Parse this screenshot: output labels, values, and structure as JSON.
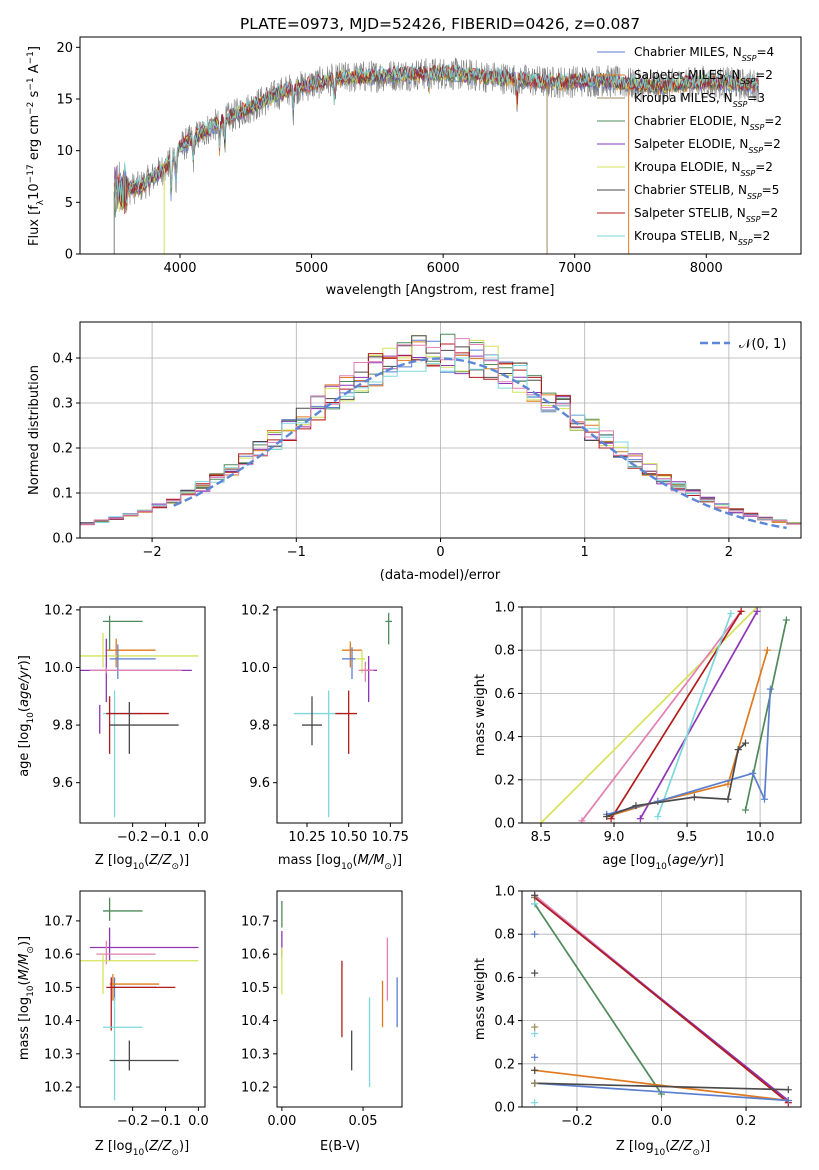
{
  "figure": {
    "title": "PLATE=0973, MJD=52426, FIBERID=0426, z=0.087"
  },
  "colors": {
    "Chabrier MILES": "#5b7fd0",
    "Salpeter MILES": "#e07a1f",
    "Kroupa MILES": "#9a8a5a",
    "Chabrier ELODIE": "#4f8a5b",
    "Salpeter ELODIE": "#8e35b5",
    "Kroupa ELODIE": "#d4e35a",
    "Chabrier STELIB": "#4a4a4a",
    "Salpeter STELIB": "#b31b1b",
    "Kroupa STELIB": "#7dd8de",
    "pink": "#e27fb3",
    "normal": "#5b87d6"
  },
  "chart_data": [
    {
      "id": "spectrum",
      "type": "line",
      "title": "PLATE=0973, MJD=52426, FIBERID=0426, z=0.087",
      "xlabel": "wavelength [Angstrom, rest frame]",
      "ylabel": "Flux [f_λ10^-17 erg cm^-2 s^-1 A^-1]",
      "xlim": [
        3240,
        8720
      ],
      "ylim": [
        0,
        21
      ],
      "xticks": [
        4000,
        5000,
        6000,
        7000,
        8000
      ],
      "yticks": [
        0,
        5,
        10,
        15,
        20
      ],
      "legend_placement": "right",
      "legend": [
        {
          "model": "Chabrier MILES",
          "nssp": "4"
        },
        {
          "model": "Salpeter MILES",
          "nssp": "2"
        },
        {
          "model": "Kroupa MILES",
          "nssp": "3"
        },
        {
          "model": "Chabrier ELODIE",
          "nssp": "2"
        },
        {
          "model": "Salpeter ELODIE",
          "nssp": "2"
        },
        {
          "model": "Kroupa ELODIE",
          "nssp": "2"
        },
        {
          "model": "Chabrier STELIB",
          "nssp": "5"
        },
        {
          "model": "Salpeter STELIB",
          "nssp": "2"
        },
        {
          "model": "Kroupa STELIB",
          "nssp": "2"
        }
      ],
      "continuum": [
        [
          3500,
          6.0
        ],
        [
          3700,
          6.5
        ],
        [
          3900,
          8.5
        ],
        [
          4000,
          10.3
        ],
        [
          4200,
          12.0
        ],
        [
          4500,
          14.0
        ],
        [
          4800,
          15.8
        ],
        [
          5200,
          17.0
        ],
        [
          5600,
          17.3
        ],
        [
          6000,
          17.5
        ],
        [
          6400,
          17.1
        ],
        [
          6800,
          16.6
        ],
        [
          7200,
          16.8
        ],
        [
          7600,
          16.2
        ],
        [
          8000,
          16.7
        ],
        [
          8400,
          16.3
        ]
      ],
      "wavelength_range": [
        3500,
        8400
      ]
    },
    {
      "id": "residuals",
      "type": "line",
      "xlabel": "(data-model)/error",
      "ylabel": "Normed distribution",
      "xlim": [
        -2.5,
        2.5
      ],
      "ylim": [
        0,
        0.48
      ],
      "xticks": [
        -2,
        -1,
        0,
        1,
        2
      ],
      "yticks": [
        0.0,
        0.1,
        0.2,
        0.3,
        0.4
      ],
      "legend_placement": "top-right",
      "legend": "N(0,1)",
      "bin_width": 0.1,
      "normal": {
        "mean": 0,
        "sigma": 1,
        "x_range": [
          -1.85,
          2.45
        ]
      }
    },
    {
      "id": "age-vs-Z",
      "type": "scatter",
      "xlabel": "Z [log10(Z/Z☉)]",
      "ylabel": "age  [log10(age/yr)]",
      "xlim": [
        -0.36,
        0.02
      ],
      "ylim": [
        9.46,
        10.21
      ],
      "xticks": [
        -0.2,
        -0.1,
        0.0
      ],
      "yticks": [
        9.6,
        9.8,
        10.0,
        10.2
      ],
      "points": [
        {
          "c": "Chabrier ELODIE",
          "x": -0.27,
          "y": 10.16,
          "xe": [
            -0.29,
            -0.17
          ],
          "ye": [
            10.06,
            10.18
          ]
        },
        {
          "c": "Salpeter MILES",
          "x": -0.25,
          "y": 10.06,
          "xe": [
            -0.28,
            -0.13
          ],
          "ye": [
            10.0,
            10.1
          ]
        },
        {
          "c": "Kroupa ELODIE",
          "x": -0.29,
          "y": 10.04,
          "xe": [
            -0.36,
            0.0
          ],
          "ye": [
            10.0,
            10.12
          ]
        },
        {
          "c": "Chabrier MILES",
          "x": -0.245,
          "y": 10.03,
          "xe": [
            -0.27,
            -0.13
          ],
          "ye": [
            9.96,
            10.08
          ]
        },
        {
          "c": "Salpeter ELODIE",
          "x": -0.28,
          "y": 9.99,
          "xe": [
            -0.36,
            -0.02
          ],
          "ye": [
            9.88,
            10.1
          ]
        },
        {
          "c": "Kroupa STELIB",
          "x": -0.255,
          "y": 9.84,
          "xe": [
            -0.29,
            -0.17
          ],
          "ye": [
            9.48,
            9.92
          ]
        },
        {
          "c": "Salpeter STELIB",
          "x": -0.27,
          "y": 9.84,
          "xe": [
            -0.28,
            -0.09
          ],
          "ye": [
            9.7,
            9.9
          ]
        },
        {
          "c": "Chabrier STELIB",
          "x": -0.21,
          "y": 9.8,
          "xe": [
            -0.27,
            -0.06
          ],
          "ye": [
            9.7,
            9.88
          ]
        },
        {
          "c": "Salpeter ELODIE",
          "x": -0.3,
          "y": 9.8,
          "xe": [
            -0.3,
            -0.3
          ],
          "ye": [
            9.77,
            9.87
          ]
        },
        {
          "c": "pink",
          "x": -0.28,
          "y": 9.99,
          "xe": [
            -0.33,
            -0.05
          ],
          "ye": [
            9.98,
            10.0
          ]
        }
      ]
    },
    {
      "id": "age-vs-mass",
      "type": "scatter",
      "xlabel": "mass [log10(M/M☉)]",
      "xlim": [
        10.07,
        10.82
      ],
      "ylim": [
        9.46,
        10.21
      ],
      "xticks": [
        10.25,
        10.5,
        10.75
      ],
      "yticks": [
        9.6,
        9.8,
        10.0,
        10.2
      ],
      "points": [
        {
          "c": "Chabrier ELODIE",
          "x": 10.74,
          "y": 10.16,
          "xe": [
            10.72,
            10.76
          ],
          "ye": [
            10.08,
            10.19
          ]
        },
        {
          "c": "Salpeter MILES",
          "x": 10.51,
          "y": 10.06,
          "xe": [
            10.46,
            10.58
          ],
          "ye": [
            10.0,
            10.09
          ]
        },
        {
          "c": "Chabrier MILES",
          "x": 10.52,
          "y": 10.03,
          "xe": [
            10.46,
            10.54
          ],
          "ye": [
            9.96,
            10.07
          ]
        },
        {
          "c": "Kroupa ELODIE",
          "x": 10.58,
          "y": 10.03,
          "xe": [
            10.54,
            10.6
          ],
          "ye": [
            9.98,
            10.06
          ]
        },
        {
          "c": "Salpeter ELODIE",
          "x": 10.62,
          "y": 9.99,
          "xe": [
            10.58,
            10.67
          ],
          "ye": [
            9.88,
            10.04
          ]
        },
        {
          "c": "pink",
          "x": 10.6,
          "y": 9.99,
          "xe": [
            10.56,
            10.65
          ],
          "ye": [
            9.95,
            10.02
          ]
        },
        {
          "c": "Kroupa STELIB",
          "x": 10.38,
          "y": 9.84,
          "xe": [
            10.17,
            10.46
          ],
          "ye": [
            9.48,
            9.92
          ]
        },
        {
          "c": "Salpeter STELIB",
          "x": 10.5,
          "y": 9.84,
          "xe": [
            10.42,
            10.55
          ],
          "ye": [
            9.7,
            9.92
          ]
        },
        {
          "c": "Chabrier STELIB",
          "x": 10.28,
          "y": 9.8,
          "xe": [
            10.22,
            10.34
          ],
          "ye": [
            9.73,
            9.9
          ]
        }
      ]
    },
    {
      "id": "weight-vs-age",
      "type": "line",
      "xlabel": "age  [log10(age/yr)]",
      "ylabel": "mass weight",
      "xlim": [
        8.37,
        10.28
      ],
      "ylim": [
        0,
        1.0
      ],
      "xticks": [
        8.5,
        9.0,
        9.5,
        10.0
      ],
      "yticks": [
        0.0,
        0.2,
        0.4,
        0.6,
        0.8,
        1.0
      ],
      "series": [
        {
          "c": "Kroupa ELODIE",
          "pts": [
            [
              8.5,
              0.0
            ],
            [
              9.98,
              1.0
            ]
          ]
        },
        {
          "c": "pink",
          "pts": [
            [
              8.78,
              0.01
            ],
            [
              9.87,
              0.98
            ]
          ]
        },
        {
          "c": "Salpeter STELIB",
          "pts": [
            [
              8.98,
              0.02
            ],
            [
              9.87,
              0.98
            ]
          ]
        },
        {
          "c": "Salpeter ELODIE",
          "pts": [
            [
              9.18,
              0.02
            ],
            [
              9.98,
              0.98
            ]
          ]
        },
        {
          "c": "Kroupa STELIB",
          "pts": [
            [
              9.3,
              0.03
            ],
            [
              9.8,
              0.97
            ]
          ]
        },
        {
          "c": "Chabrier ELODIE",
          "pts": [
            [
              9.9,
              0.06
            ],
            [
              10.18,
              0.94
            ]
          ]
        },
        {
          "c": "Salpeter MILES",
          "pts": [
            [
              8.95,
              0.03
            ],
            [
              9.3,
              0.1
            ],
            [
              9.78,
              0.18
            ],
            [
              9.85,
              0.34
            ],
            [
              10.05,
              0.8
            ]
          ]
        },
        {
          "c": "Chabrier MILES",
          "pts": [
            [
              8.95,
              0.04
            ],
            [
              9.3,
              0.1
            ],
            [
              9.95,
              0.23
            ],
            [
              10.03,
              0.11
            ],
            [
              10.07,
              0.62
            ]
          ]
        },
        {
          "c": "Chabrier STELIB",
          "pts": [
            [
              8.95,
              0.03
            ],
            [
              9.15,
              0.08
            ],
            [
              9.55,
              0.12
            ],
            [
              9.78,
              0.11
            ],
            [
              9.85,
              0.34
            ],
            [
              9.9,
              0.37
            ]
          ]
        }
      ]
    },
    {
      "id": "mass-vs-Z",
      "type": "scatter",
      "xlabel": "Z [log10(Z/Z☉)]",
      "ylabel": "mass [log10(M/M☉)]",
      "xlim": [
        -0.36,
        0.02
      ],
      "ylim": [
        10.14,
        10.79
      ],
      "xticks": [
        -0.2,
        -0.1,
        0.0
      ],
      "yticks": [
        10.2,
        10.3,
        10.4,
        10.5,
        10.6,
        10.7
      ],
      "points": [
        {
          "c": "Chabrier ELODIE",
          "x": -0.27,
          "y": 10.73,
          "xe": [
            -0.29,
            -0.17
          ],
          "ye": [
            10.7,
            10.77
          ]
        },
        {
          "c": "Salpeter ELODIE",
          "x": -0.27,
          "y": 10.62,
          "xe": [
            -0.33,
            0.0
          ],
          "ye": [
            10.58,
            10.68
          ]
        },
        {
          "c": "pink",
          "x": -0.28,
          "y": 10.6,
          "xe": [
            -0.31,
            -0.13
          ],
          "ye": [
            10.57,
            10.64
          ]
        },
        {
          "c": "Kroupa ELODIE",
          "x": -0.29,
          "y": 10.58,
          "xe": [
            -0.36,
            0.0
          ],
          "ye": [
            10.48,
            10.6
          ]
        },
        {
          "c": "Chabrier MILES",
          "x": -0.255,
          "y": 10.5,
          "xe": [
            -0.27,
            -0.13
          ],
          "ye": [
            10.46,
            10.53
          ]
        },
        {
          "c": "Salpeter MILES",
          "x": -0.26,
          "y": 10.51,
          "xe": [
            -0.27,
            -0.12
          ],
          "ye": [
            10.46,
            10.54
          ]
        },
        {
          "c": "Salpeter STELIB",
          "x": -0.265,
          "y": 10.5,
          "xe": [
            -0.28,
            -0.07
          ],
          "ye": [
            10.37,
            10.53
          ]
        },
        {
          "c": "Kroupa STELIB",
          "x": -0.255,
          "y": 10.38,
          "xe": [
            -0.29,
            -0.17
          ],
          "ye": [
            10.16,
            10.47
          ]
        },
        {
          "c": "Chabrier STELIB",
          "x": -0.21,
          "y": 10.28,
          "xe": [
            -0.27,
            -0.06
          ],
          "ye": [
            10.25,
            10.34
          ]
        }
      ]
    },
    {
      "id": "mass-vs-ebv",
      "type": "scatter",
      "xlabel": "E(B-V)",
      "xlim": [
        -0.003,
        0.074
      ],
      "ylim": [
        10.14,
        10.79
      ],
      "xticks": [
        0.0,
        0.05
      ],
      "yticks": [
        10.2,
        10.3,
        10.4,
        10.5,
        10.6,
        10.7
      ],
      "points": [
        {
          "c": "Chabrier ELODIE",
          "x": 0.0,
          "y": 10.72,
          "ye": [
            10.68,
            10.76
          ]
        },
        {
          "c": "Salpeter ELODIE",
          "x": 0.0,
          "y": 10.63,
          "ye": [
            10.59,
            10.67
          ]
        },
        {
          "c": "Kroupa ELODIE",
          "x": 0.0,
          "y": 10.55,
          "ye": [
            10.48,
            10.62
          ]
        },
        {
          "c": "Salpeter STELIB",
          "x": 0.037,
          "y": 10.47,
          "ye": [
            10.35,
            10.58
          ]
        },
        {
          "c": "Chabrier STELIB",
          "x": 0.043,
          "y": 10.31,
          "ye": [
            10.25,
            10.37
          ]
        },
        {
          "c": "Kroupa STELIB",
          "x": 0.054,
          "y": 10.33,
          "ye": [
            10.2,
            10.47
          ]
        },
        {
          "c": "Salpeter MILES",
          "x": 0.062,
          "y": 10.45,
          "ye": [
            10.38,
            10.52
          ]
        },
        {
          "c": "pink",
          "x": 0.065,
          "y": 10.55,
          "ye": [
            10.46,
            10.65
          ]
        },
        {
          "c": "Chabrier MILES",
          "x": 0.071,
          "y": 10.46,
          "ye": [
            10.38,
            10.53
          ]
        }
      ]
    },
    {
      "id": "weight-vs-Z",
      "type": "line",
      "xlabel": "Z [log10(Z/Z☉)]",
      "ylabel": "mass weight",
      "xlim": [
        -0.33,
        0.33
      ],
      "ylim": [
        0,
        1.0
      ],
      "xticks": [
        -0.2,
        0.0,
        0.2
      ],
      "yticks": [
        0.0,
        0.2,
        0.4,
        0.6,
        0.8,
        1.0
      ],
      "series": [
        {
          "c": "pink",
          "pts": [
            [
              -0.3,
              0.98
            ],
            [
              0.3,
              0.02
            ]
          ]
        },
        {
          "c": "Salpeter ELODIE",
          "pts": [
            [
              -0.3,
              0.97
            ],
            [
              0.3,
              0.03
            ]
          ]
        },
        {
          "c": "Salpeter STELIB",
          "pts": [
            [
              -0.3,
              0.97
            ],
            [
              0.3,
              0.02
            ]
          ]
        },
        {
          "c": "Chabrier ELODIE",
          "pts": [
            [
              -0.3,
              0.94
            ],
            [
              0.0,
              0.06
            ]
          ]
        },
        {
          "c": "Salpeter MILES",
          "pts": [
            [
              -0.3,
              0.17
            ],
            [
              0.3,
              0.03
            ]
          ]
        },
        {
          "c": "Chabrier MILES",
          "pts": [
            [
              -0.3,
              0.11
            ],
            [
              0.3,
              0.03
            ]
          ]
        },
        {
          "c": "Chabrier STELIB",
          "pts": [
            [
              -0.3,
              0.11
            ],
            [
              0.3,
              0.08
            ]
          ]
        }
      ],
      "markers_at_x": -0.3,
      "marker_values": [
        0.02,
        0.11,
        0.17,
        0.23,
        0.34,
        0.37,
        0.62,
        0.8,
        0.94,
        0.97,
        0.98
      ]
    }
  ]
}
